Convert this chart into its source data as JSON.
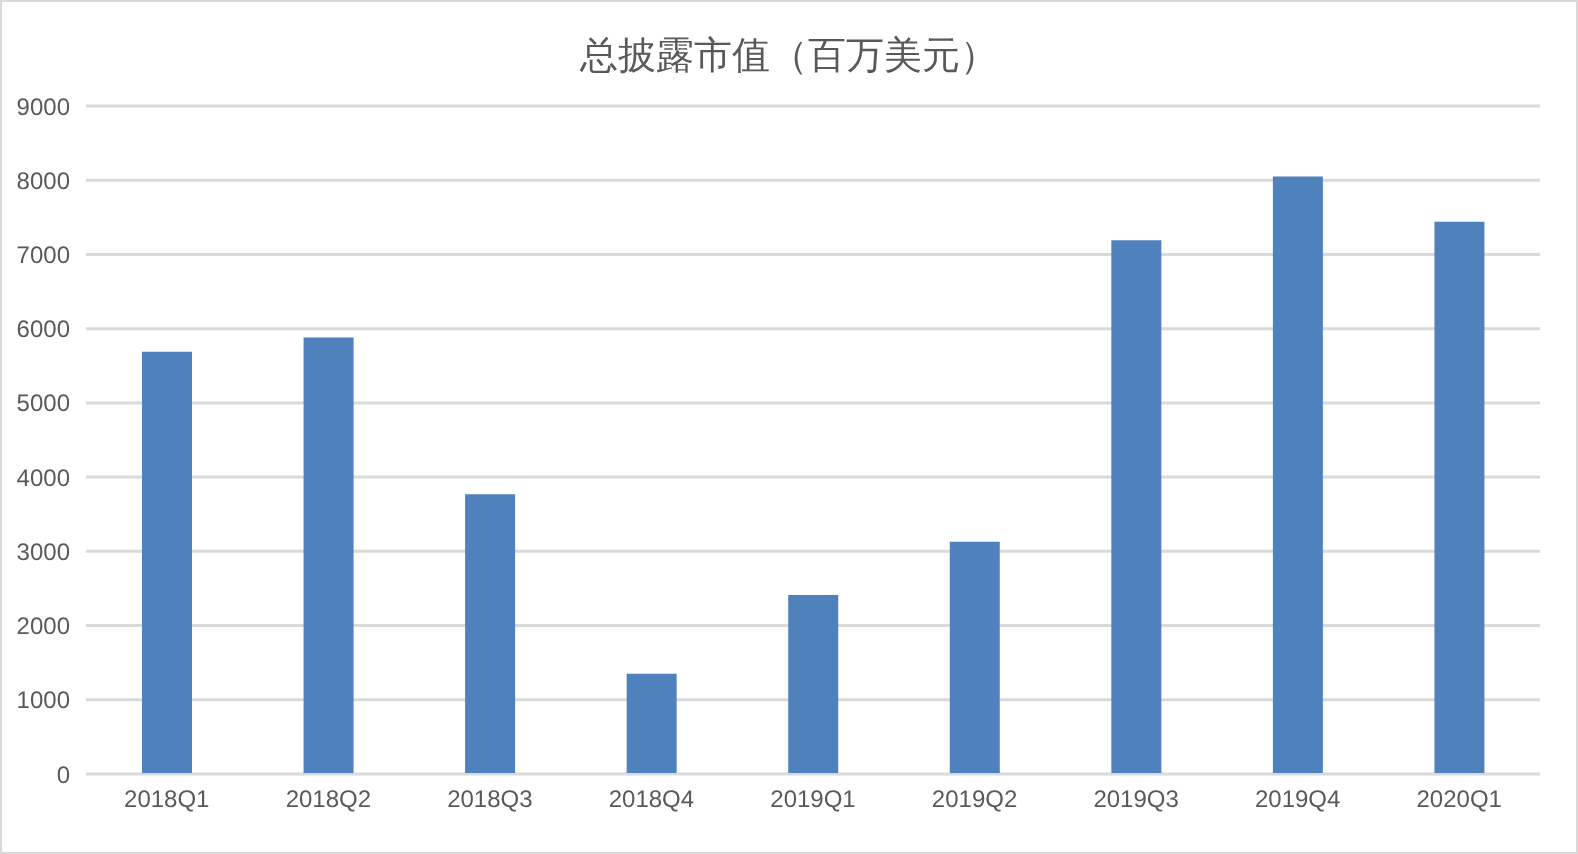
{
  "chart_data": {
    "type": "bar",
    "title": "总披露市值（百万美元）",
    "categories": [
      "2018Q1",
      "2018Q2",
      "2018Q3",
      "2018Q4",
      "2019Q1",
      "2019Q2",
      "2019Q3",
      "2019Q4",
      "2020Q1"
    ],
    "values": [
      5690,
      5880,
      3770,
      1350,
      2410,
      3130,
      7190,
      8050,
      7440
    ],
    "color": "#4f81bd",
    "ylim": [
      0,
      9000
    ],
    "yticks": [
      0,
      1000,
      2000,
      3000,
      4000,
      5000,
      6000,
      7000,
      8000,
      9000
    ],
    "grid": "y",
    "legend": false
  }
}
